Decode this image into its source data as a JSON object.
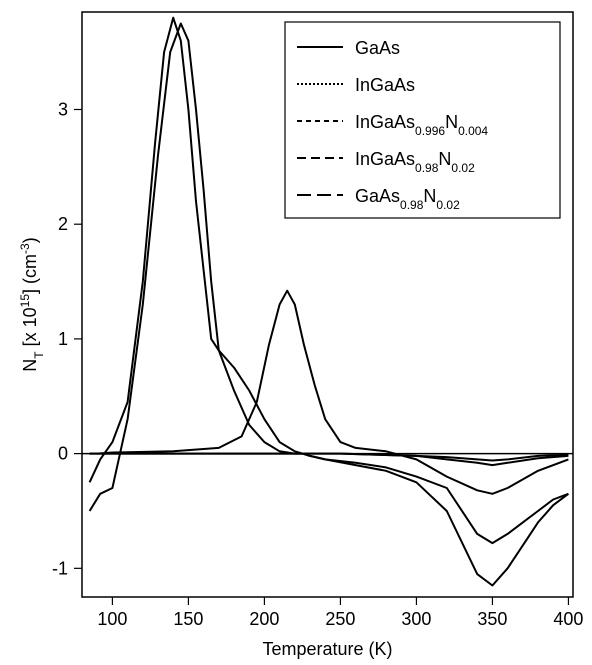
{
  "chart_data": {
    "type": "line",
    "title": "",
    "xlabel": "Temperature (K)",
    "ylabel": {
      "base": "N",
      "sub": "T",
      "mid": " [x 10",
      "sup": "15",
      "end": "] (cm",
      "sup2": "-3",
      "close": ")"
    },
    "xlim": [
      80,
      403
    ],
    "ylim": [
      -1.25,
      3.85
    ],
    "xticks": [
      100,
      150,
      200,
      250,
      300,
      350,
      400
    ],
    "yticks": [
      -1,
      0,
      1,
      2,
      3
    ],
    "grid": false,
    "legend_position": "top-right",
    "legend": [
      {
        "parts": [
          {
            "t": "GaAs"
          }
        ],
        "dash": "none"
      },
      {
        "parts": [
          {
            "t": "InGaAs"
          }
        ],
        "dash": "2,2"
      },
      {
        "parts": [
          {
            "t": "InGaAs"
          },
          {
            "t": "0.996",
            "sub": true
          },
          {
            "t": "N"
          },
          {
            "t": "0.004",
            "sub": true
          }
        ],
        "dash": "5,4"
      },
      {
        "parts": [
          {
            "t": "InGaAs"
          },
          {
            "t": "0.98",
            "sub": true
          },
          {
            "t": "N"
          },
          {
            "t": "0.02",
            "sub": true
          }
        ],
        "dash": "9,5"
      },
      {
        "parts": [
          {
            "t": "GaAs"
          },
          {
            "t": "0.98",
            "sub": true
          },
          {
            "t": "N"
          },
          {
            "t": "0.02",
            "sub": true
          }
        ],
        "dash": "14,6"
      }
    ],
    "series": [
      {
        "x": [
          85,
          92,
          100,
          110,
          120,
          128,
          134,
          140,
          145,
          150,
          155,
          160,
          165,
          170,
          180,
          190,
          200,
          210,
          220,
          225,
          230,
          240,
          260,
          280,
          300,
          320,
          340,
          350,
          360,
          370,
          380,
          390,
          400
        ],
        "y": [
          -0.25,
          -0.05,
          0.1,
          0.45,
          1.5,
          2.7,
          3.5,
          3.8,
          3.6,
          3.0,
          2.2,
          1.6,
          1.0,
          0.9,
          0.75,
          0.55,
          0.3,
          0.1,
          0.02,
          0.0,
          -0.02,
          -0.05,
          -0.08,
          -0.12,
          -0.2,
          -0.3,
          -0.7,
          -0.78,
          -0.7,
          -0.6,
          -0.5,
          -0.4,
          -0.35
        ]
      },
      {
        "x": [
          85,
          92,
          100,
          110,
          120,
          130,
          138,
          145,
          150,
          155,
          160,
          165,
          170,
          180,
          190,
          200,
          210,
          220,
          225,
          230,
          240,
          260,
          280,
          300,
          320,
          340,
          350,
          360,
          370,
          380,
          390,
          400
        ],
        "y": [
          -0.5,
          -0.35,
          -0.3,
          0.3,
          1.3,
          2.6,
          3.5,
          3.75,
          3.6,
          3.0,
          2.3,
          1.5,
          0.9,
          0.55,
          0.25,
          0.1,
          0.02,
          0.0,
          0.0,
          -0.02,
          -0.05,
          -0.1,
          -0.15,
          -0.25,
          -0.5,
          -1.05,
          -1.15,
          -1.0,
          -0.8,
          -0.6,
          -0.45,
          -0.35
        ]
      },
      {
        "x": [
          90,
          100,
          140,
          170,
          185,
          195,
          203,
          210,
          215,
          220,
          226,
          233,
          240,
          250,
          260,
          280,
          300,
          320,
          340,
          350,
          360,
          380,
          400
        ],
        "y": [
          0.0,
          0.01,
          0.02,
          0.05,
          0.15,
          0.45,
          0.95,
          1.3,
          1.42,
          1.3,
          0.95,
          0.6,
          0.3,
          0.1,
          0.05,
          0.02,
          -0.05,
          -0.2,
          -0.32,
          -0.35,
          -0.3,
          -0.15,
          -0.05
        ]
      },
      {
        "x": [
          85,
          150,
          200,
          250,
          300,
          320,
          340,
          350,
          360,
          380,
          400
        ],
        "y": [
          0.0,
          0.0,
          0.0,
          0.0,
          -0.02,
          -0.05,
          -0.08,
          -0.1,
          -0.08,
          -0.04,
          -0.02
        ]
      },
      {
        "x": [
          85,
          150,
          200,
          250,
          300,
          320,
          340,
          350,
          360,
          380,
          400
        ],
        "y": [
          0.0,
          0.0,
          0.0,
          0.0,
          -0.02,
          -0.03,
          -0.05,
          -0.06,
          -0.05,
          -0.02,
          -0.01
        ]
      }
    ]
  }
}
